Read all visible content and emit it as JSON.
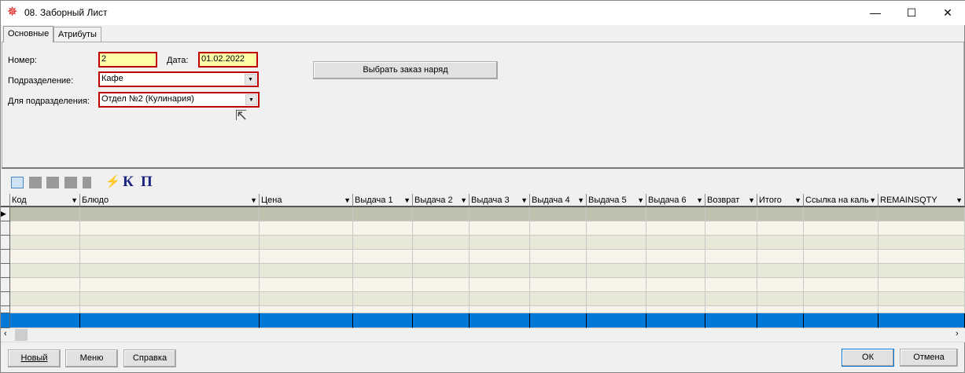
{
  "window": {
    "title": "08. Заборный Лист",
    "minimize": "—",
    "maximize": "☐",
    "close": "✕"
  },
  "tabs": [
    {
      "label": "Основные",
      "active": true
    },
    {
      "label": "Атрибуты",
      "active": false
    }
  ],
  "form": {
    "number_label": "Номер:",
    "number_value": "2",
    "date_label": "Дата:",
    "date_value": "01.02.2022",
    "division_label": "Подразделение:",
    "division_value": "Кафе",
    "for_division_label": "Для подразделения:",
    "for_division_value": "Отдел №2 (Кулинария)",
    "select_order_button": "Выбрать заказ наряд"
  },
  "toolbar": {
    "icons": [
      "folder-open-icon",
      "folder-edit-icon",
      "folder-icon",
      "folder-refresh-icon",
      "document-icon",
      "lightning-icon"
    ],
    "k_label": "К",
    "p_label": "П"
  },
  "grid": {
    "columns": [
      "Код",
      "Блюдо",
      "Цена",
      "Выдача 1",
      "Выдача 2",
      "Выдача 3",
      "Выдача 4",
      "Выдача 5",
      "Выдача 6",
      "Возврат",
      "Итого",
      "Ссылка на каль",
      "REMAINSQTY"
    ],
    "row_colors": {
      "selected": "#bfc0ae",
      "odd": "#f7f3e8",
      "even": "#e8e8d8",
      "footer": "#0078d7"
    }
  },
  "buttons": {
    "new": "Новый",
    "menu": "Меню",
    "help": "Справка",
    "ok": "ОК",
    "cancel": "Отмена"
  }
}
